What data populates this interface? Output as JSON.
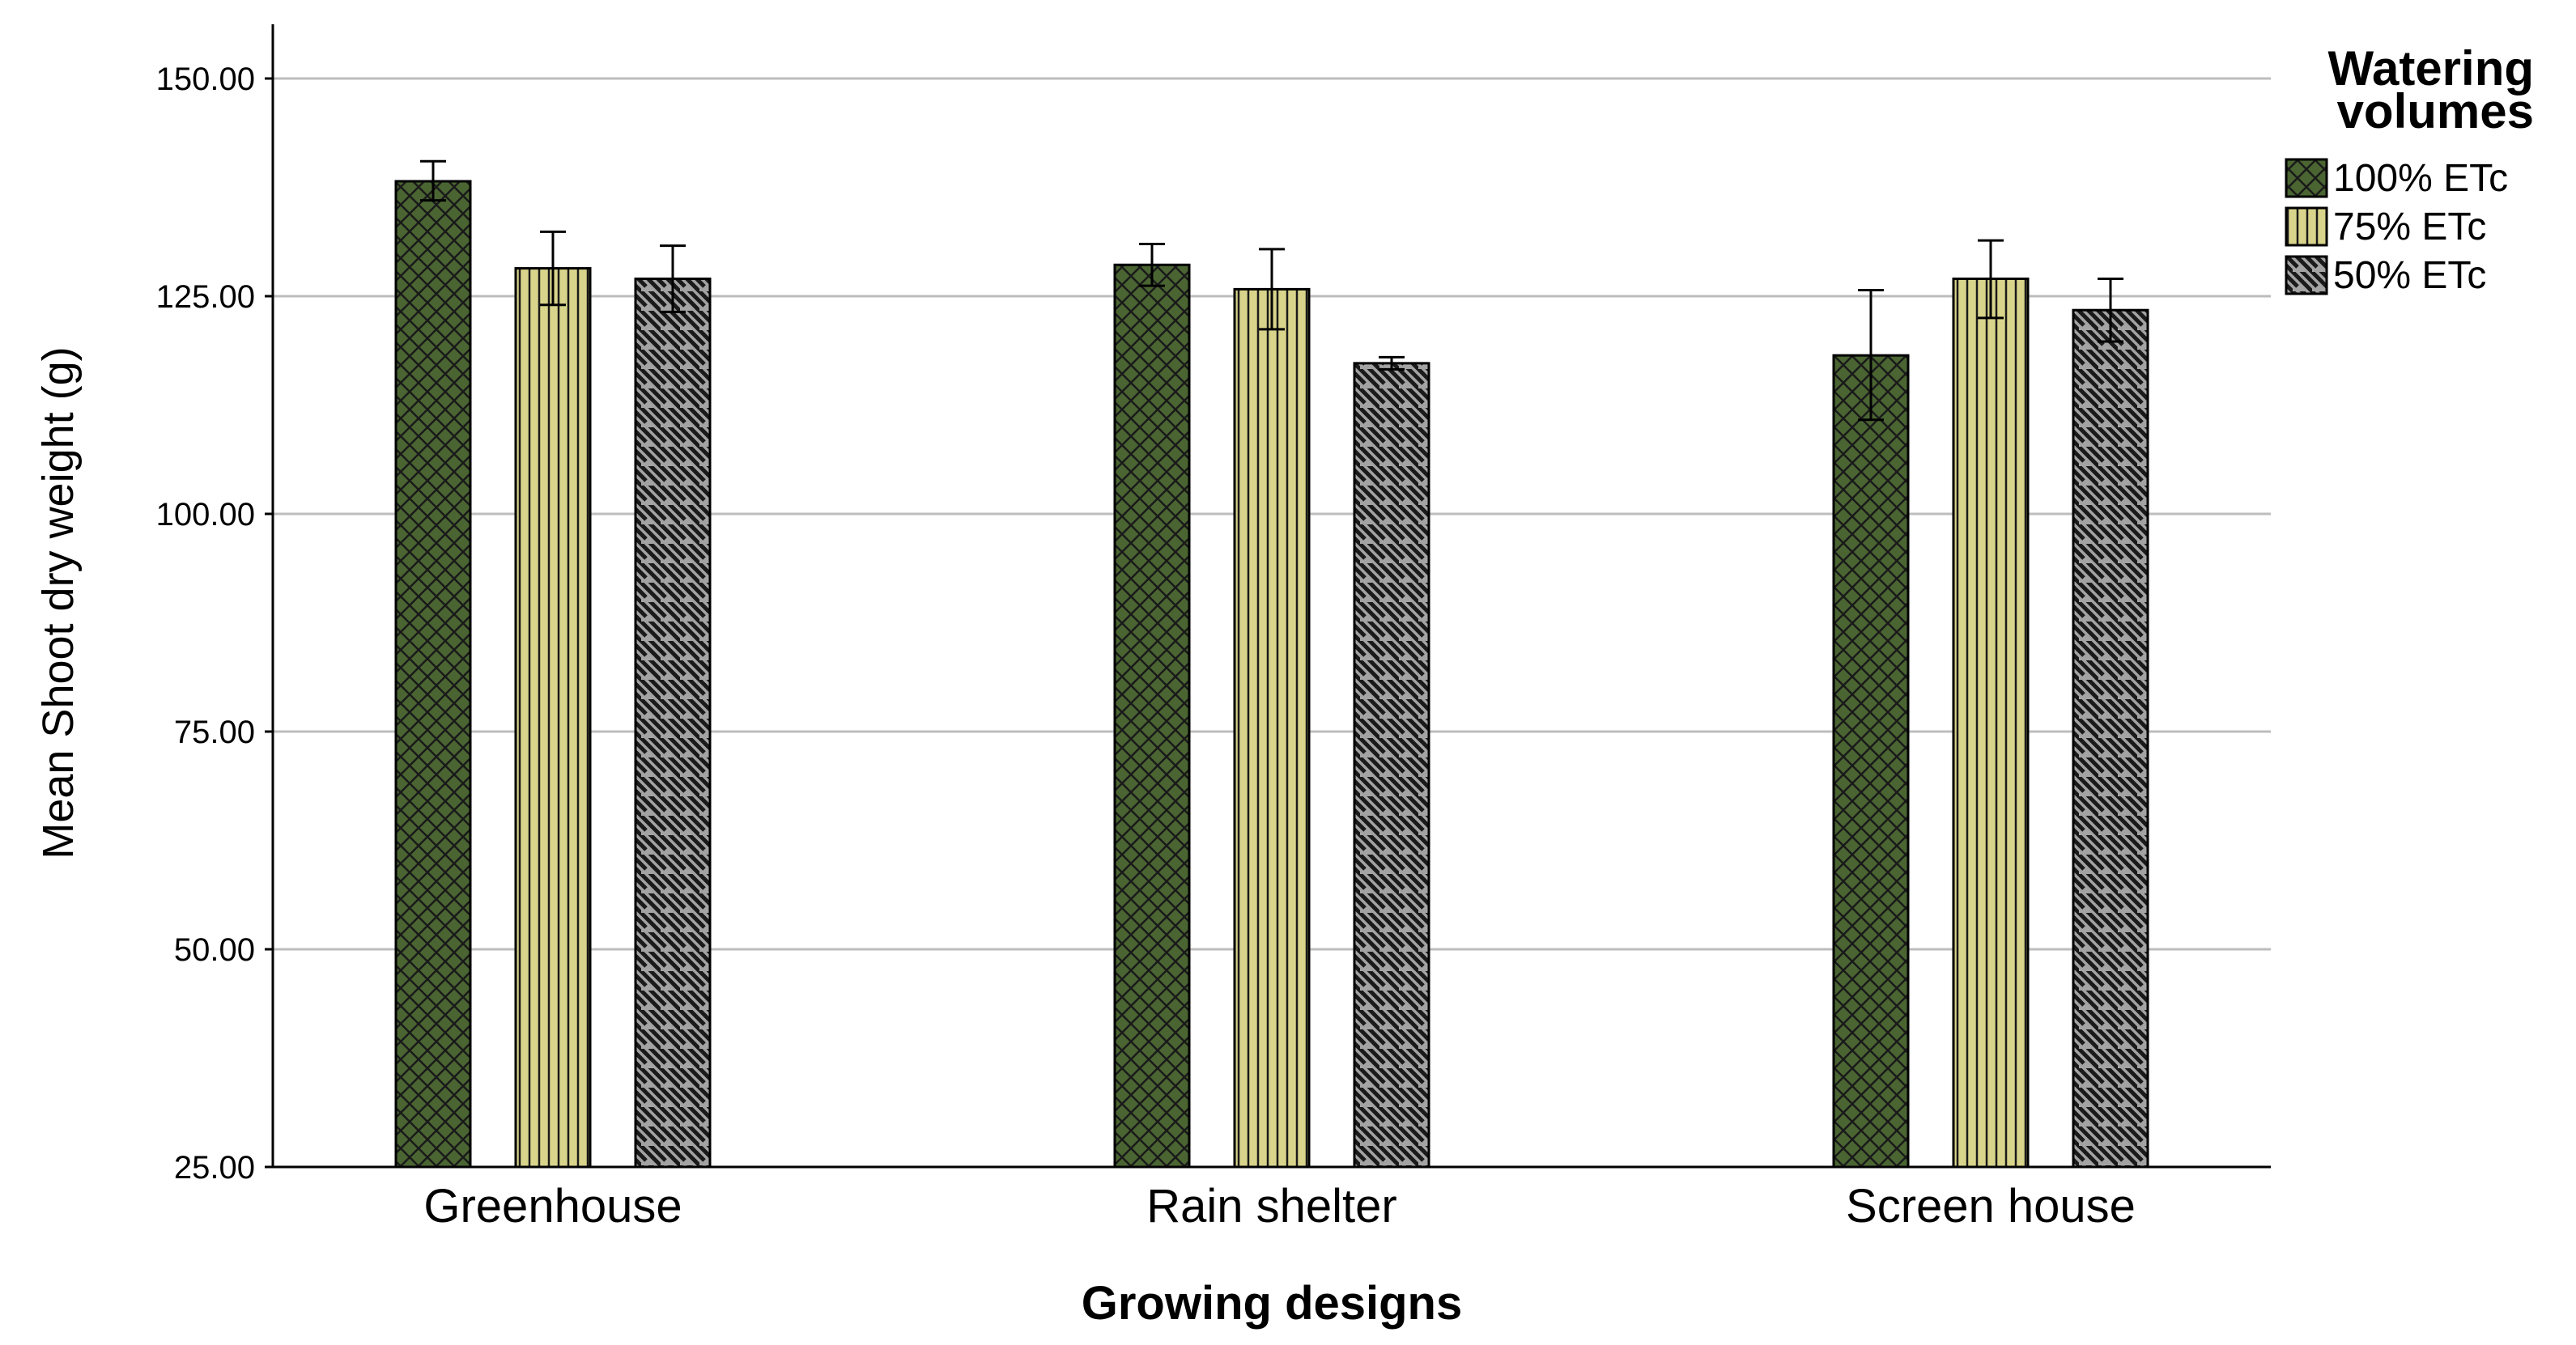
{
  "chart_data": {
    "type": "bar",
    "title": "",
    "xlabel": "Growing designs",
    "ylabel": "Mean Shoot dry weight (g)",
    "ylim": [
      25,
      150
    ],
    "yticks": [
      25,
      50,
      75,
      100,
      125,
      150
    ],
    "ytick_labels": [
      "25.00",
      "50.00",
      "75.00",
      "100.00",
      "125.00",
      "150.00"
    ],
    "grid": true,
    "categories": [
      "Greenhouse",
      "Rain shelter",
      "Screen house"
    ],
    "legend": {
      "title_line1": "Watering",
      "title_line2": "volumes",
      "placement": "top-right"
    },
    "series": [
      {
        "name": "100% ETc",
        "pattern": "crosshatch",
        "color": "#4a6532",
        "values": [
          138.2,
          128.6,
          118.2
        ],
        "error_low": [
          136.0,
          126.2,
          110.8
        ],
        "error_high": [
          140.5,
          131.0,
          125.7
        ]
      },
      {
        "name": "75% ETc",
        "pattern": "vertical-lines",
        "color": "#d9d48b",
        "values": [
          128.2,
          125.8,
          127.0
        ],
        "error_low": [
          124.0,
          121.2,
          122.5
        ],
        "error_high": [
          132.4,
          130.4,
          131.4
        ]
      },
      {
        "name": "50% ETc",
        "pattern": "diagonal-lines",
        "color": "#a3a3a3",
        "values": [
          127.0,
          117.3,
          123.4
        ],
        "error_low": [
          123.2,
          116.6,
          119.8
        ],
        "error_high": [
          130.8,
          118.0,
          127.0
        ]
      }
    ]
  }
}
